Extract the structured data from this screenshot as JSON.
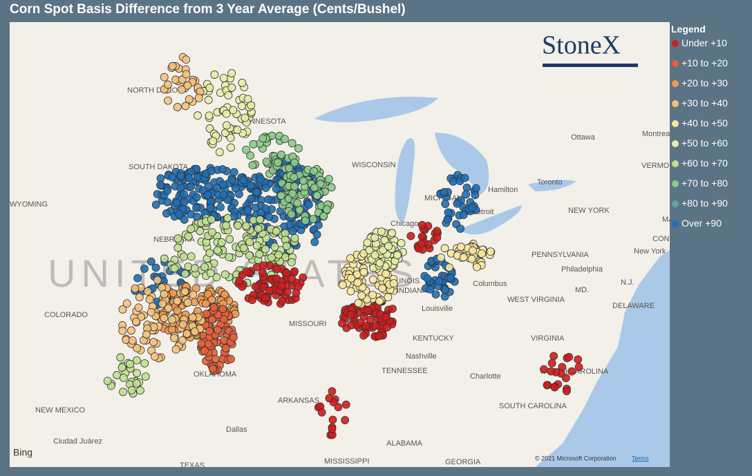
{
  "title": "Corn Spot Basis Difference from 3 Year Average (Cents/Bushel)",
  "legend": {
    "title": "Legend",
    "items": [
      {
        "label": "Under +10",
        "color": "#d01c1c"
      },
      {
        "label": "+10 to +20",
        "color": "#e8613a"
      },
      {
        "label": "+20 to +30",
        "color": "#ef9a4e"
      },
      {
        "label": "+30 to +40",
        "color": "#f5c27c"
      },
      {
        "label": "+40 to +50",
        "color": "#f8e8a0"
      },
      {
        "label": "+50 to +60",
        "color": "#e6eea8"
      },
      {
        "label": "+60 to +70",
        "color": "#bfe090"
      },
      {
        "label": "+70 to +80",
        "color": "#8ccb8a"
      },
      {
        "label": "+80 to +90",
        "color": "#5aa6a6"
      },
      {
        "label": "Over +90",
        "color": "#1e6fb5"
      }
    ]
  },
  "map": {
    "country_label": "UNITED STATES",
    "labels": [
      "NORTH DAKOTA",
      "MINNESOTA",
      "SOUTH DAKOTA",
      "WYOMING",
      "NEBRASKA",
      "COLORADO",
      "MISSOURI",
      "KENTUCKY",
      "TENNESSEE",
      "OKLAHOMA",
      "ARKANSAS",
      "NEW MEXICO",
      "ALABAMA",
      "MISSISSIPPI",
      "GEORGIA",
      "TEXAS",
      "WEST VIRGINIA",
      "VIRGINIA",
      "NORTH CAROLINA",
      "SOUTH CAROLINA",
      "PENNSYLVANIA",
      "NEW YORK",
      "MICHIGAN",
      "INDIANA",
      "WISCONSIN",
      "ILLINOIS",
      "DELAWARE",
      "MD.",
      "N.J.",
      "VERMONT",
      "MASS.",
      "CONN.",
      "Ottawa",
      "Toronto",
      "Hamilton",
      "Detroit",
      "Chicago",
      "Columbus",
      "Louisville",
      "Nashville",
      "Charlotte",
      "Philadelphia",
      "New York",
      "Montreal",
      "Dallas",
      "Ciudad Juárez"
    ],
    "attribution": "© 2021 Microsoft Corporation",
    "terms": "Terms",
    "provider": "Bing",
    "logo": "StoneX"
  }
}
